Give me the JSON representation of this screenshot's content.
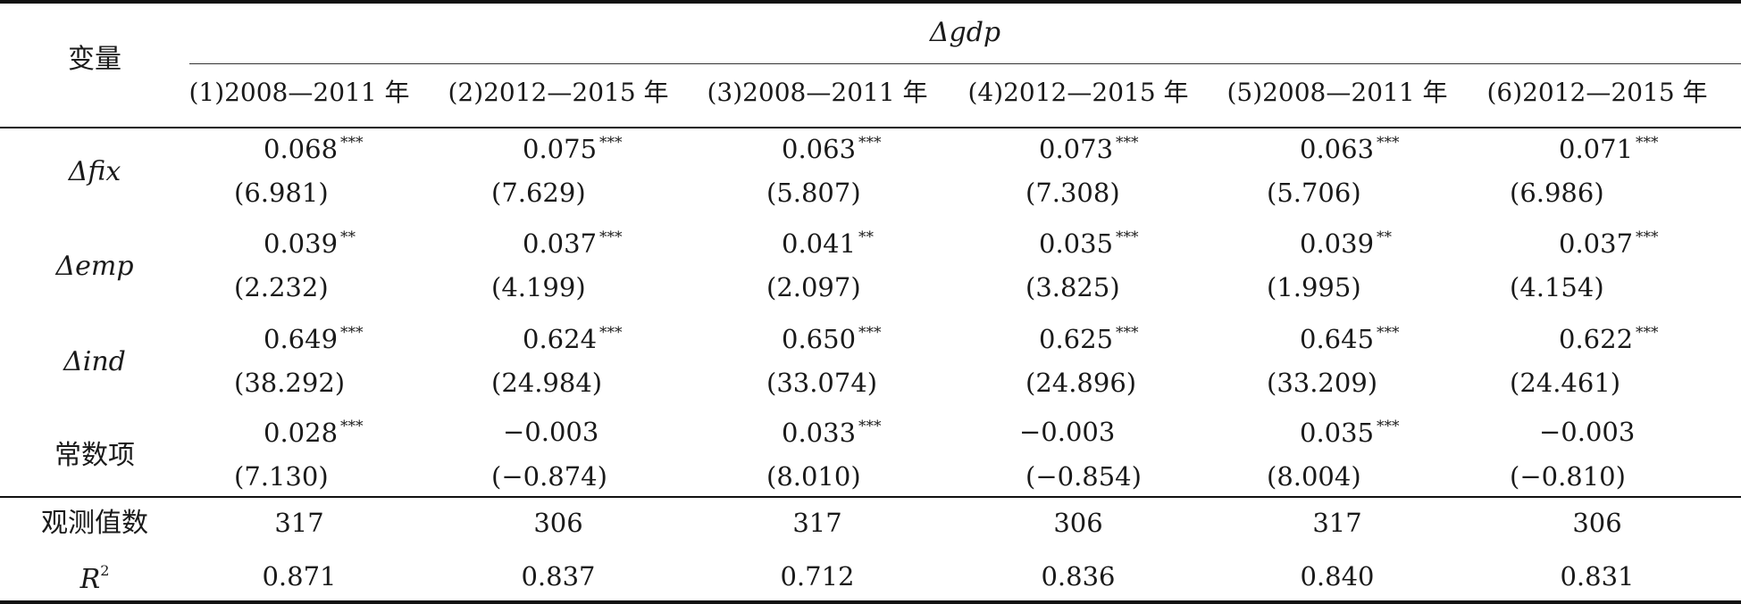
{
  "header": {
    "variable_label": "变量",
    "dependent": "Δgdp",
    "columns": [
      "(1)2008—2011 年",
      "(2)2012—2015 年",
      "(3)2008—2011 年",
      "(4)2012—2015 年",
      "(5)2008—2011 年",
      "(6)2012—2015 年"
    ]
  },
  "rows": [
    {
      "label": "Δfix",
      "coefs": [
        "0.068",
        "0.075",
        "0.063",
        "0.073",
        "0.063",
        "0.071"
      ],
      "stars": [
        "***",
        "***",
        "***",
        "***",
        "***",
        "***"
      ],
      "tstats": [
        "(6.981)",
        "(7.629)",
        "(5.807)",
        "(7.308)",
        "(5.706)",
        "(6.986)"
      ]
    },
    {
      "label": "Δemp",
      "coefs": [
        "0.039",
        "0.037",
        "0.041",
        "0.035",
        "0.039",
        "0.037"
      ],
      "stars": [
        "**",
        "***",
        "**",
        "***",
        "**",
        "***"
      ],
      "tstats": [
        "(2.232)",
        "(4.199)",
        "(2.097)",
        "(3.825)",
        "(1.995)",
        "(4.154)"
      ]
    },
    {
      "label": "Δind",
      "coefs": [
        "0.649",
        "0.624",
        "0.650",
        "0.625",
        "0.645",
        "0.622"
      ],
      "stars": [
        "***",
        "***",
        "***",
        "***",
        "***",
        "***"
      ],
      "tstats": [
        "(38.292)",
        "(24.984)",
        "(33.074)",
        "(24.896)",
        "(33.209)",
        "(24.461)"
      ]
    },
    {
      "label": "常数项",
      "coefs": [
        "0.028",
        "−0.003",
        "0.033",
        "−0.003",
        "0.035",
        "−0.003"
      ],
      "stars": [
        "***",
        "",
        "***",
        "",
        "***",
        ""
      ],
      "tstats": [
        "(7.130)",
        "(−0.874)",
        "(8.010)",
        "(−0.854)",
        "(8.004)",
        "(−0.810)"
      ]
    }
  ],
  "footer": {
    "obs_label": "观测值数",
    "obs": [
      "317",
      "306",
      "317",
      "306",
      "317",
      "306"
    ],
    "r2_label": "R",
    "r2_sup": "2",
    "r2": [
      "0.871",
      "0.837",
      "0.712",
      "0.836",
      "0.840",
      "0.831"
    ]
  }
}
